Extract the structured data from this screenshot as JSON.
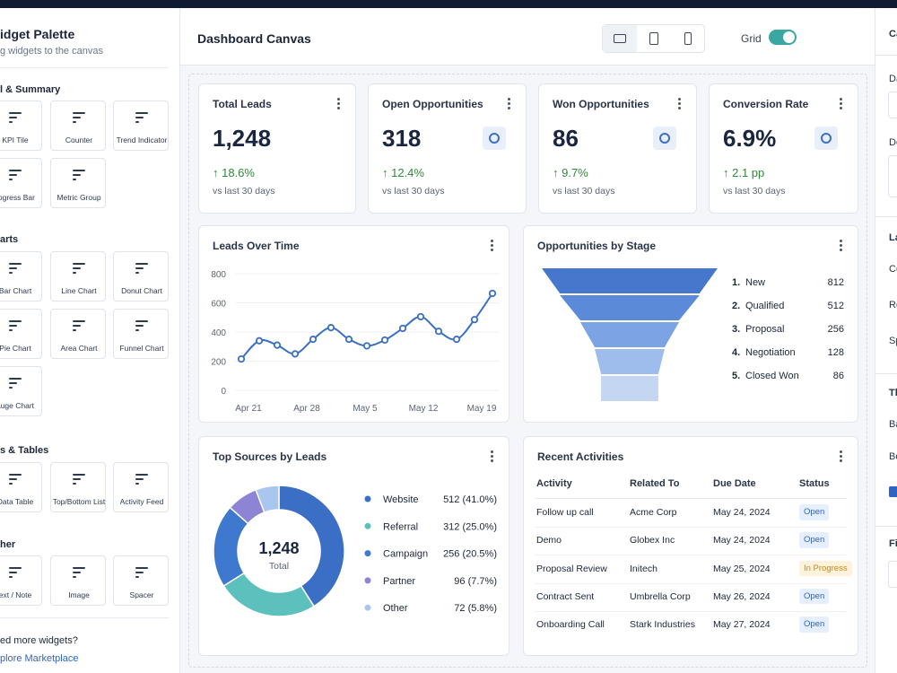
{
  "sidebar": {
    "title": "idget Palette",
    "subtitle": "g widgets to the canvas",
    "sections": [
      {
        "title": "l & Summary",
        "items": [
          "KPI Tile",
          "Counter",
          "Trend Indicator",
          "rogress Bar",
          "Metric Group"
        ]
      },
      {
        "title": "arts",
        "items": [
          "Bar Chart",
          "Line Chart",
          "Donut Chart",
          "Pie Chart",
          "Area Chart",
          "Funnel Chart",
          "auge Chart"
        ]
      },
      {
        "title": "s & Tables",
        "items": [
          "Data Table",
          "Top/Bottom List",
          "Activity Feed"
        ]
      },
      {
        "title": "her",
        "items": [
          "ext / Note",
          "Image",
          "Spacer"
        ]
      }
    ],
    "footer": "ed more widgets?",
    "link": "plore Marketplace"
  },
  "canvas": {
    "title": "Dashboard Canvas",
    "grid_label": "Grid"
  },
  "kpis": [
    {
      "title": "Total Leads",
      "value": "1,248",
      "change": "↑ 18.6%",
      "note": "vs last 30 days"
    },
    {
      "title": "Open Opportunities",
      "value": "318",
      "change": "↑ 12.4%",
      "note": "vs last 30 days"
    },
    {
      "title": "Won Opportunities",
      "value": "86",
      "change": "↑ 9.7%",
      "note": "vs last 30 days"
    },
    {
      "title": "Conversion Rate",
      "value": "6.9%",
      "change": "↑ 2.1 pp",
      "note": "vs last 30 days"
    }
  ],
  "line_chart": {
    "type": "line",
    "title": "Leads Over Time",
    "x_labels": [
      "Apr 21",
      "Apr 28",
      "May 5",
      "May 12",
      "May 19"
    ],
    "values": [
      215,
      340,
      310,
      250,
      350,
      430,
      350,
      305,
      345,
      425,
      505,
      405,
      350,
      485,
      665
    ],
    "color": "#3a6fc4",
    "ylim": [
      0,
      800
    ],
    "yticks": [
      0,
      200,
      400,
      600,
      800
    ],
    "grid": true
  },
  "funnel": {
    "type": "funnel",
    "title": "Opportunities by Stage",
    "ranks": [
      "1.",
      "2.",
      "3.",
      "4.",
      "5."
    ],
    "categories": [
      "New",
      "Qualified",
      "Proposal",
      "Negotiation",
      "Closed Won"
    ],
    "values": [
      812,
      512,
      256,
      128,
      86
    ],
    "colors": [
      "#4677cc",
      "#5a8ad8",
      "#7ca3e3",
      "#9fbdec",
      "#c5d6f3"
    ]
  },
  "donut": {
    "type": "donut",
    "title": "Top Sources by Leads",
    "center_value": "1,248",
    "center_label": "Total",
    "categories": [
      "Website",
      "Referral",
      "Campaign",
      "Partner",
      "Other"
    ],
    "values": [
      512,
      312,
      256,
      96,
      72
    ],
    "value_labels": [
      "512 (41.0%)",
      "312 (25.0%)",
      "256 (20.5%)",
      "96 (7.7%)",
      "72 (5.8%)"
    ],
    "colors": [
      "#3b6fc6",
      "#5cc0bc",
      "#3f78cf",
      "#8d84d6",
      "#a9c6ef"
    ]
  },
  "activities": {
    "title": "Recent Activities",
    "columns": [
      "Activity",
      "Related To",
      "Due Date",
      "Status"
    ],
    "rows": [
      [
        "Follow up call",
        "Acme Corp",
        "May 24, 2024",
        "Open"
      ],
      [
        "Demo",
        "Globex Inc",
        "May 24, 2024",
        "Open"
      ],
      [
        "Proposal Review",
        "Initech",
        "May 25, 2024",
        "In Progress"
      ],
      [
        "Contract Sent",
        "Umbrella Corp",
        "May 26, 2024",
        "Open"
      ],
      [
        "Onboarding Call",
        "Stark Industries",
        "May 27, 2024",
        "Open"
      ]
    ]
  },
  "right_panel": {
    "labels": [
      "Ca",
      "Da",
      "De",
      "La",
      "Co",
      "Ro",
      "Sp",
      "Th",
      "Ba",
      "Bo",
      "Fi"
    ]
  }
}
